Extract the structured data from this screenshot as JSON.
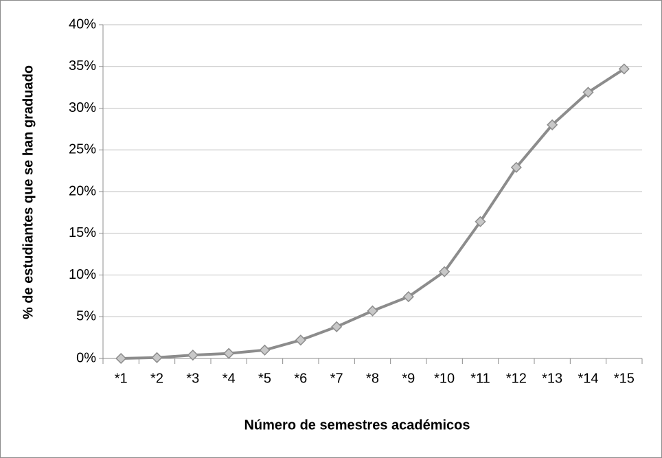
{
  "chart_data": {
    "type": "line",
    "x_label": "Número de semestres académicos",
    "y_label": "% de estudiantes que se han graduado",
    "categories": [
      "*1",
      "*2",
      "*3",
      "*4",
      "*5",
      "*6",
      "*7",
      "*8",
      "*9",
      "*10",
      "*11",
      "*12",
      "*13",
      "*14",
      "*15"
    ],
    "series": [
      {
        "color": "#8c8c8c",
        "values": [
          0,
          0.1,
          0.4,
          0.6,
          1.0,
          2.2,
          3.8,
          5.7,
          7.4,
          10.4,
          16.4,
          22.9,
          28.0,
          31.9,
          34.7
        ]
      }
    ],
    "ylim": [
      0,
      40
    ],
    "yticks": [
      {
        "value": 0,
        "label": "0%"
      },
      {
        "value": 5,
        "label": "5%"
      },
      {
        "value": 10,
        "label": "10%"
      },
      {
        "value": 15,
        "label": "15%"
      },
      {
        "value": 20,
        "label": "20%"
      },
      {
        "value": 25,
        "label": "25%"
      },
      {
        "value": 30,
        "label": "30%"
      },
      {
        "value": 35,
        "label": "35%"
      },
      {
        "value": 40,
        "label": "40%"
      }
    ],
    "grid": true
  }
}
